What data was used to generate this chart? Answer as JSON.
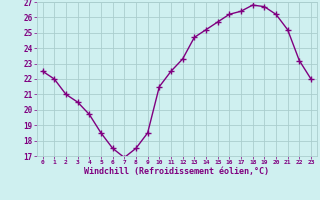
{
  "hours": [
    0,
    1,
    2,
    3,
    4,
    5,
    6,
    7,
    8,
    9,
    10,
    11,
    12,
    13,
    14,
    15,
    16,
    17,
    18,
    19,
    20,
    21,
    22,
    23
  ],
  "values": [
    22.5,
    22.0,
    21.0,
    20.5,
    19.7,
    18.5,
    17.5,
    16.9,
    17.5,
    18.5,
    21.5,
    22.5,
    23.3,
    24.7,
    25.2,
    25.7,
    26.2,
    26.4,
    26.8,
    26.7,
    26.2,
    25.2,
    23.2,
    22.0
  ],
  "ylim": [
    17,
    27
  ],
  "yticks": [
    17,
    18,
    19,
    20,
    21,
    22,
    23,
    24,
    25,
    26,
    27
  ],
  "xtick_labels": [
    "0",
    "1",
    "2",
    "3",
    "4",
    "5",
    "6",
    "7",
    "8",
    "9",
    "10",
    "11",
    "12",
    "13",
    "14",
    "15",
    "16",
    "17",
    "18",
    "19",
    "20",
    "21",
    "22",
    "23"
  ],
  "xlabel": "Windchill (Refroidissement éolien,°C)",
  "line_color": "#800080",
  "marker": "D",
  "marker_size": 2,
  "bg_color": "#cff0f0",
  "grid_color": "#aacece",
  "xlabel_color": "#800080",
  "tick_color": "#800080",
  "linewidth": 1.0
}
